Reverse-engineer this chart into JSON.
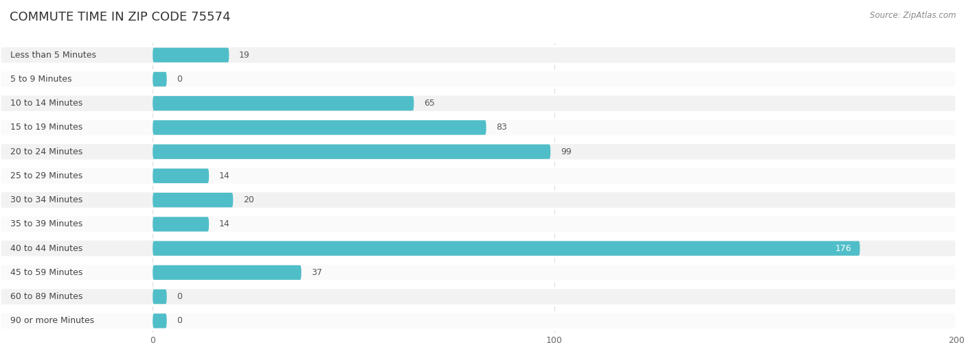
{
  "title": "COMMUTE TIME IN ZIP CODE 75574",
  "source": "Source: ZipAtlas.com",
  "categories": [
    "Less than 5 Minutes",
    "5 to 9 Minutes",
    "10 to 14 Minutes",
    "15 to 19 Minutes",
    "20 to 24 Minutes",
    "25 to 29 Minutes",
    "30 to 34 Minutes",
    "35 to 39 Minutes",
    "40 to 44 Minutes",
    "45 to 59 Minutes",
    "60 to 89 Minutes",
    "90 or more Minutes"
  ],
  "values": [
    19,
    0,
    65,
    83,
    99,
    14,
    20,
    14,
    176,
    37,
    0,
    0
  ],
  "bar_color": "#50bec8",
  "bg_color": "#ffffff",
  "row_bg_even": "#f2f2f2",
  "row_bg_odd": "#fafafa",
  "text_color": "#444444",
  "value_color_outside": "#555555",
  "value_color_inside": "#ffffff",
  "grid_color": "#dddddd",
  "title_color": "#333333",
  "source_color": "#888888",
  "xlim_max": 200,
  "xticks": [
    0,
    100,
    200
  ],
  "title_fontsize": 13,
  "label_fontsize": 9,
  "value_fontsize": 9,
  "source_fontsize": 8.5,
  "tick_fontsize": 9
}
